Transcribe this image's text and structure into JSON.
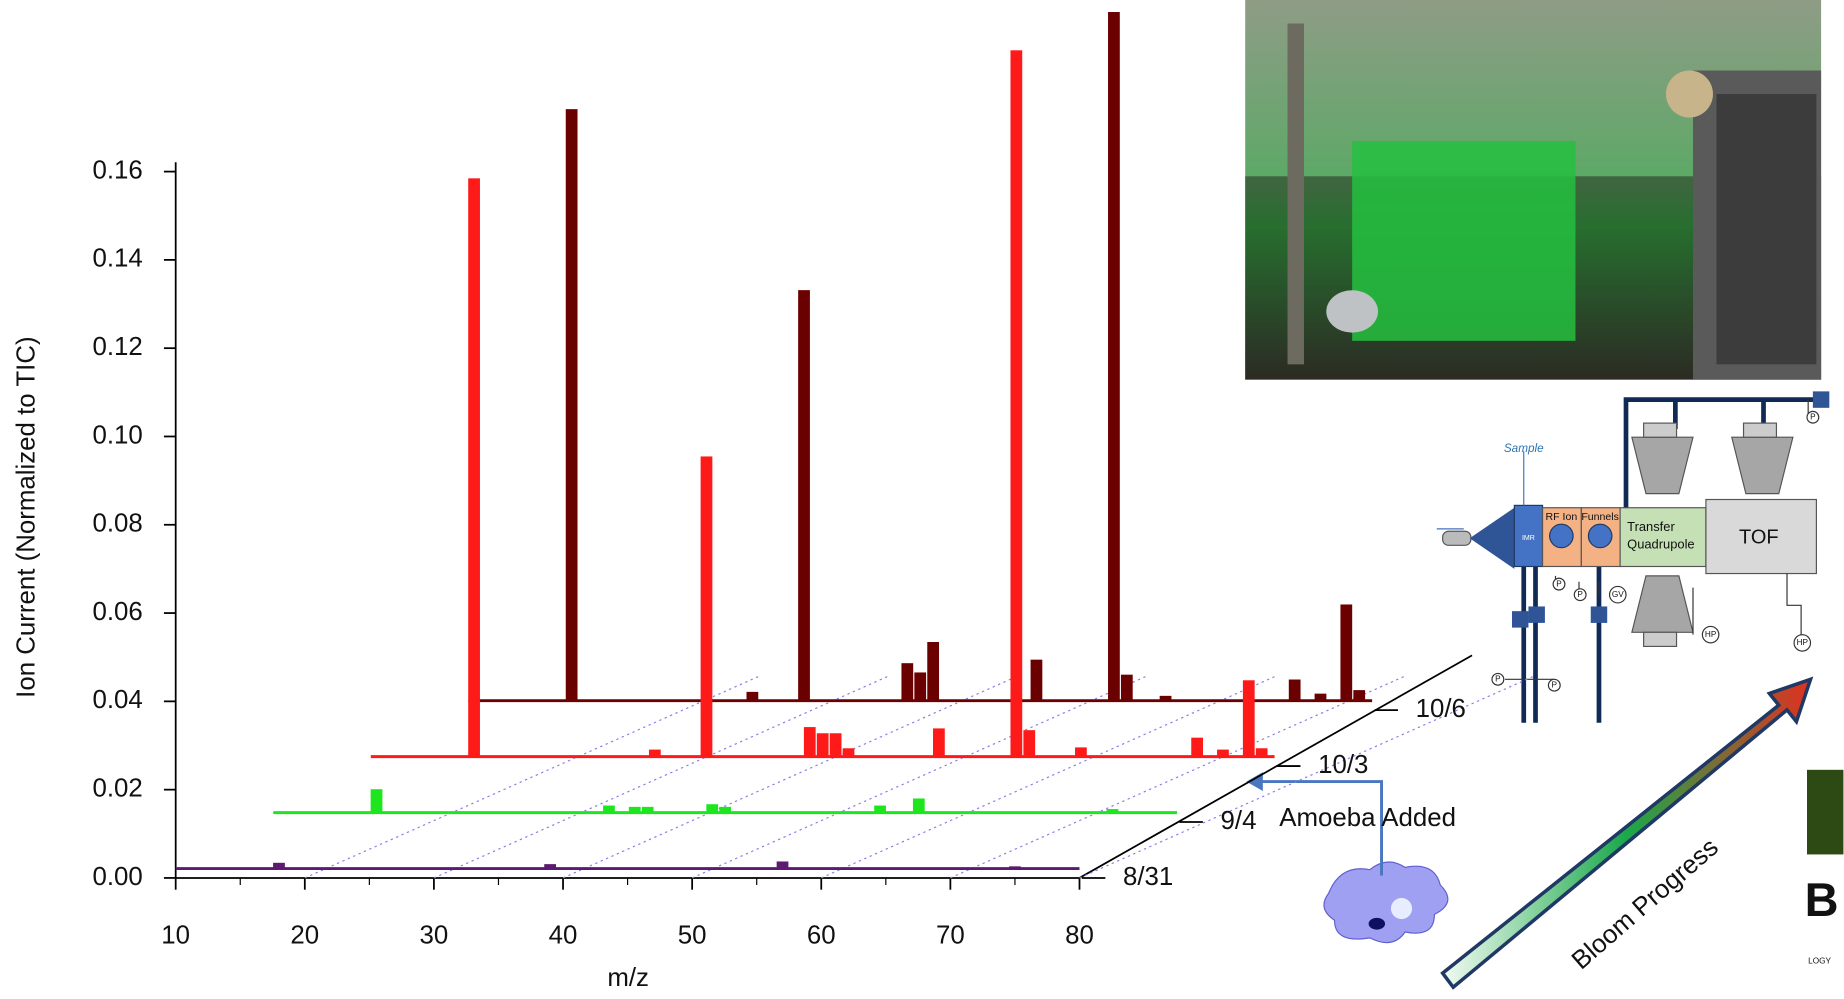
{
  "chart_data": {
    "type": "bar",
    "ylabel": "Ion Current (Normalized to TIC)",
    "xlabel": "m/z",
    "xlim": [
      10,
      80
    ],
    "xticks": [
      10,
      20,
      30,
      40,
      50,
      60,
      70,
      80
    ],
    "ylim": [
      0,
      0.16
    ],
    "yticks": [
      {
        "value": 0,
        "label": "0.00"
      },
      0.02,
      0.04,
      0.06,
      0.08,
      {
        "value": 0.1,
        "label": "0.10"
      },
      0.12,
      0.14,
      0.16
    ],
    "series": [
      {
        "name": "8/31",
        "color": "#5c1a70",
        "x": [
          18,
          39,
          57,
          75
        ],
        "values": [
          0.0013,
          0.001,
          0.0016,
          0.0005
        ]
      },
      {
        "name": "9/4",
        "color": "#1ee61e",
        "x": [
          18,
          36,
          38,
          39,
          44,
          45,
          57,
          60,
          75
        ],
        "values": [
          0.0053,
          0.0016,
          0.0013,
          0.0013,
          0.0019,
          0.0013,
          0.0016,
          0.0032,
          0.0008
        ]
      },
      {
        "name": "10/3",
        "color": "#ff1a1a",
        "x": [
          18,
          32,
          36,
          44,
          45,
          46,
          47,
          54,
          60,
          61,
          65,
          74,
          76,
          78,
          79
        ],
        "values": [
          0.131,
          0.0016,
          0.068,
          0.0067,
          0.0053,
          0.0053,
          0.0019,
          0.0064,
          0.16,
          0.006,
          0.0021,
          0.0043,
          0.0016,
          0.0173,
          0.0019
        ]
      },
      {
        "name": "10/6",
        "color": "#6b0000",
        "x": [
          18,
          32,
          36,
          44,
          45,
          46,
          54,
          60,
          61,
          64,
          74,
          76,
          78,
          79
        ],
        "values": [
          0.134,
          0.002,
          0.093,
          0.0085,
          0.0064,
          0.0133,
          0.0093,
          0.156,
          0.0059,
          0.0011,
          0.0048,
          0.0016,
          0.0218,
          0.0024
        ]
      }
    ],
    "annotation": "Amoeba Added"
  },
  "diagram": {
    "sample": "Sample",
    "imr": "IMR",
    "rf_ion": "RF Ion",
    "funnels": "Funnels",
    "transfer": "Transfer",
    "quadrupole": "Quadrupole",
    "tof": "TOF",
    "pressure": "P",
    "gate_valve": "GV",
    "high_pressure": "HP"
  },
  "bloom_label": "Bloom Progress",
  "logo": {
    "letter": "B",
    "text": "LOGY"
  }
}
